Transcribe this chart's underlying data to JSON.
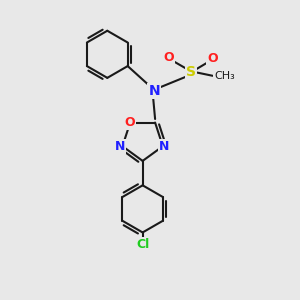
{
  "background_color": "#e8e8e8",
  "bond_color": "#1a1a1a",
  "N_color": "#2020ff",
  "O_color": "#ff2020",
  "S_color": "#cccc00",
  "Cl_color": "#1fcc1f",
  "bond_width": 1.5,
  "figsize": [
    3.0,
    3.0
  ],
  "dpi": 100,
  "xlim": [
    0,
    10
  ],
  "ylim": [
    0,
    10
  ]
}
